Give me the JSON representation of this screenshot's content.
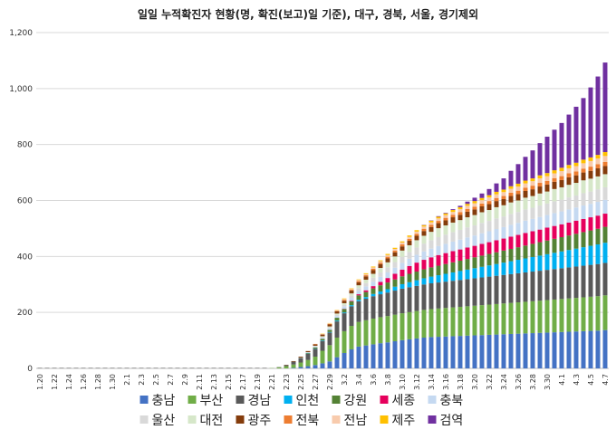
{
  "chart_data": {
    "type": "bar",
    "stacked": true,
    "title": "일일 누적확진자 현황(명, 확진(보고)일 기준), 대구, 경북, 서울, 경기제외",
    "xlabel": "",
    "ylabel": "",
    "ylim": [
      0,
      1200
    ],
    "yticks": [
      0,
      200,
      400,
      600,
      800,
      1000,
      1200
    ],
    "ytick_labels": [
      "0",
      "200",
      "400",
      "600",
      "800",
      "1,000",
      "1,200"
    ],
    "grid": true,
    "legend": "bottom",
    "categories": [
      "1.20",
      "1.21",
      "1.22",
      "1.23",
      "1.24",
      "1.25",
      "1.26",
      "1.27",
      "1.28",
      "1.29",
      "1.30",
      "1.31",
      "2.1",
      "2.2",
      "2.3",
      "2.4",
      "2.5",
      "2.6",
      "2.7",
      "2.8",
      "2.9",
      "2.10",
      "2.11",
      "2.12",
      "2.13",
      "2.14",
      "2.15",
      "2.16",
      "2.17",
      "2.18",
      "2.19",
      "2.20",
      "2.21",
      "2.22",
      "2.23",
      "2.24",
      "2.25",
      "2.26",
      "2.27",
      "2.28",
      "2.29",
      "3.1",
      "3.2",
      "3.3",
      "3.4",
      "3.5",
      "3.6",
      "3.7",
      "3.8",
      "3.9",
      "3.10",
      "3.11",
      "3.12",
      "3.13",
      "3.14",
      "3.15",
      "3.16",
      "3.17",
      "3.18",
      "3.19",
      "3.20",
      "3.21",
      "3.22",
      "3.23",
      "3.24",
      "3.25",
      "3.26",
      "3.27",
      "3.28",
      "3.29",
      "3.30",
      "3.31",
      "4.1",
      "4.2",
      "4.3",
      "4.4",
      "4.5",
      "4.6",
      "4.7"
    ],
    "tick_labels": [
      "1.20",
      "1.22",
      "1.24",
      "1.26",
      "1.28",
      "1.30",
      "2.1",
      "2.3",
      "2.5",
      "2.7",
      "2.9",
      "2.11",
      "2.13",
      "2.15",
      "2.17",
      "2.19",
      "2.21",
      "2.23",
      "2.25",
      "2.27",
      "2.29",
      "3.2",
      "3.4",
      "3.6",
      "3.8",
      "3.10",
      "3.12",
      "3.14",
      "3.16",
      "3.18",
      "3.20",
      "3.22",
      "3.24",
      "3.26",
      "3.28",
      "3.30",
      "4.1",
      "4.3",
      "4.5",
      "4.7"
    ],
    "series": [
      {
        "name": "충남",
        "color": "#4472C4",
        "values": [
          0,
          0,
          0,
          0,
          0,
          0,
          0,
          0,
          0,
          0,
          0,
          0,
          0,
          0,
          0,
          0,
          0,
          0,
          0,
          0,
          0,
          0,
          0,
          0,
          0,
          0,
          0,
          0,
          0,
          0,
          0,
          0,
          0,
          0,
          0,
          2,
          5,
          8,
          12,
          18,
          25,
          40,
          55,
          68,
          78,
          82,
          86,
          90,
          93,
          97,
          101,
          104,
          107,
          110,
          112,
          113,
          114,
          115,
          116,
          117,
          118,
          119,
          120,
          121,
          122,
          123,
          124,
          125,
          126,
          127,
          128,
          129,
          130,
          131,
          132,
          133,
          134,
          135,
          137
        ]
      },
      {
        "name": "부산",
        "color": "#70AD47",
        "values": [
          0,
          0,
          0,
          0,
          0,
          0,
          0,
          0,
          0,
          0,
          0,
          0,
          0,
          0,
          0,
          0,
          0,
          0,
          0,
          0,
          0,
          0,
          0,
          0,
          0,
          0,
          0,
          0,
          0,
          0,
          0,
          0,
          1,
          4,
          8,
          12,
          16,
          22,
          30,
          45,
          58,
          70,
          78,
          84,
          88,
          90,
          92,
          93,
          94,
          95,
          96,
          97,
          98,
          99,
          100,
          101,
          102,
          103,
          104,
          105,
          106,
          107,
          108,
          109,
          110,
          111,
          112,
          113,
          114,
          115,
          116,
          117,
          118,
          119,
          120,
          121,
          122,
          123,
          124
        ]
      },
      {
        "name": "경남",
        "color": "#595959",
        "values": [
          0,
          0,
          0,
          0,
          0,
          0,
          0,
          0,
          0,
          0,
          0,
          0,
          0,
          0,
          0,
          0,
          0,
          0,
          0,
          0,
          0,
          0,
          0,
          0,
          0,
          0,
          0,
          0,
          0,
          0,
          0,
          0,
          0,
          1,
          4,
          10,
          16,
          22,
          28,
          35,
          45,
          58,
          64,
          70,
          74,
          77,
          80,
          82,
          84,
          86,
          88,
          89,
          90,
          91,
          92,
          93,
          94,
          95,
          96,
          97,
          98,
          99,
          100,
          101,
          102,
          103,
          104,
          105,
          106,
          107,
          108,
          109,
          110,
          111,
          112,
          113,
          114,
          115,
          116
        ]
      },
      {
        "name": "인천",
        "color": "#00B0F0",
        "values": [
          0,
          0,
          0,
          0,
          0,
          0,
          0,
          0,
          0,
          0,
          0,
          0,
          0,
          0,
          0,
          0,
          0,
          0,
          0,
          0,
          0,
          0,
          0,
          0,
          0,
          0,
          0,
          0,
          0,
          0,
          0,
          0,
          0,
          0,
          0,
          0,
          0,
          1,
          1,
          2,
          2,
          3,
          3,
          4,
          5,
          6,
          8,
          10,
          12,
          14,
          16,
          18,
          20,
          22,
          24,
          26,
          28,
          30,
          32,
          34,
          36,
          38,
          40,
          42,
          44,
          46,
          48,
          50,
          52,
          54,
          56,
          58,
          60,
          62,
          64,
          66,
          68,
          70,
          72
        ]
      },
      {
        "name": "강원",
        "color": "#548235",
        "values": [
          0,
          0,
          0,
          0,
          0,
          0,
          0,
          0,
          0,
          0,
          0,
          0,
          0,
          0,
          0,
          0,
          0,
          0,
          0,
          0,
          0,
          0,
          0,
          0,
          0,
          0,
          0,
          0,
          0,
          0,
          0,
          0,
          0,
          0,
          0,
          0,
          1,
          2,
          4,
          6,
          8,
          10,
          12,
          14,
          16,
          18,
          20,
          22,
          24,
          26,
          28,
          30,
          31,
          32,
          33,
          34,
          35,
          36,
          37,
          38,
          39,
          40,
          41,
          42,
          43,
          44,
          45,
          46,
          47,
          48,
          49,
          50,
          51,
          52,
          53,
          54,
          55,
          56,
          57
        ]
      },
      {
        "name": "세종",
        "color": "#E6005C",
        "values": [
          0,
          0,
          0,
          0,
          0,
          0,
          0,
          0,
          0,
          0,
          0,
          0,
          0,
          0,
          0,
          0,
          0,
          0,
          0,
          0,
          0,
          0,
          0,
          0,
          0,
          0,
          0,
          0,
          0,
          0,
          0,
          0,
          0,
          0,
          0,
          0,
          0,
          0,
          0,
          0,
          0,
          0,
          1,
          2,
          4,
          6,
          8,
          12,
          16,
          20,
          24,
          28,
          32,
          34,
          36,
          38,
          39,
          40,
          40,
          41,
          41,
          42,
          42,
          43,
          43,
          44,
          44,
          45,
          45,
          45,
          46,
          46,
          46,
          46,
          47,
          47,
          47,
          47,
          47
        ]
      },
      {
        "name": "충북",
        "color": "#C5D9F1",
        "values": [
          0,
          0,
          0,
          0,
          0,
          0,
          0,
          0,
          0,
          0,
          0,
          0,
          0,
          0,
          0,
          0,
          0,
          0,
          0,
          0,
          0,
          0,
          0,
          0,
          0,
          0,
          0,
          0,
          0,
          0,
          0,
          0,
          0,
          0,
          0,
          0,
          1,
          2,
          3,
          4,
          5,
          6,
          8,
          10,
          12,
          14,
          16,
          18,
          20,
          22,
          24,
          26,
          28,
          30,
          31,
          32,
          33,
          34,
          35,
          36,
          37,
          38,
          39,
          40,
          41,
          42,
          43,
          44,
          44,
          45,
          45,
          46,
          46,
          47,
          47,
          48,
          48,
          49,
          49
        ]
      },
      {
        "name": "울산",
        "color": "#D9D9D9",
        "values": [
          0,
          0,
          0,
          0,
          0,
          0,
          0,
          0,
          0,
          0,
          0,
          0,
          0,
          0,
          0,
          0,
          0,
          0,
          0,
          0,
          0,
          0,
          0,
          0,
          0,
          0,
          0,
          0,
          0,
          0,
          0,
          0,
          0,
          0,
          0,
          0,
          0,
          1,
          2,
          3,
          4,
          5,
          6,
          8,
          10,
          12,
          14,
          16,
          18,
          20,
          22,
          24,
          26,
          28,
          30,
          32,
          33,
          34,
          35,
          36,
          36,
          37,
          37,
          38,
          38,
          39,
          39,
          40,
          40,
          41,
          41,
          42,
          42,
          43,
          43,
          44,
          44,
          45,
          45
        ]
      },
      {
        "name": "대전",
        "color": "#D6E7C9",
        "values": [
          0,
          0,
          0,
          0,
          0,
          0,
          0,
          0,
          0,
          0,
          0,
          0,
          0,
          0,
          0,
          0,
          0,
          0,
          0,
          0,
          0,
          0,
          0,
          0,
          0,
          0,
          0,
          0,
          0,
          0,
          0,
          0,
          0,
          0,
          0,
          0,
          0,
          0,
          1,
          2,
          3,
          4,
          6,
          8,
          10,
          12,
          14,
          16,
          18,
          20,
          22,
          24,
          26,
          28,
          30,
          32,
          33,
          34,
          35,
          36,
          37,
          38,
          39,
          40,
          40,
          41,
          41,
          42,
          42,
          43,
          43,
          44,
          44,
          45,
          45,
          46,
          46,
          46,
          47
        ]
      },
      {
        "name": "광주",
        "color": "#843C0C",
        "values": [
          0,
          0,
          0,
          0,
          0,
          0,
          0,
          0,
          0,
          0,
          0,
          0,
          0,
          0,
          0,
          0,
          0,
          0,
          0,
          0,
          0,
          0,
          0,
          0,
          0,
          0,
          0,
          0,
          0,
          0,
          0,
          0,
          0,
          0,
          1,
          2,
          3,
          4,
          5,
          6,
          7,
          8,
          9,
          10,
          11,
          12,
          13,
          14,
          14,
          15,
          15,
          16,
          16,
          17,
          17,
          18,
          18,
          19,
          19,
          20,
          20,
          21,
          21,
          22,
          22,
          23,
          23,
          24,
          24,
          25,
          25,
          26,
          26,
          27,
          27,
          28,
          28,
          29,
          29
        ]
      },
      {
        "name": "전북",
        "color": "#ED7D31",
        "values": [
          0,
          0,
          0,
          0,
          0,
          0,
          0,
          0,
          0,
          0,
          0,
          0,
          0,
          0,
          0,
          0,
          0,
          0,
          0,
          0,
          0,
          0,
          0,
          0,
          0,
          0,
          0,
          0,
          0,
          0,
          0,
          0,
          0,
          0,
          0,
          0,
          0,
          0,
          1,
          1,
          2,
          2,
          3,
          3,
          4,
          4,
          5,
          5,
          6,
          6,
          7,
          7,
          7,
          8,
          8,
          8,
          9,
          9,
          9,
          10,
          10,
          10,
          11,
          11,
          11,
          12,
          12,
          12,
          13,
          13,
          13,
          13,
          14,
          14,
          14,
          14,
          15,
          15,
          15
        ]
      },
      {
        "name": "전남",
        "color": "#F8CBAD",
        "values": [
          0,
          0,
          0,
          0,
          0,
          0,
          0,
          0,
          0,
          0,
          0,
          0,
          0,
          0,
          0,
          0,
          0,
          0,
          0,
          0,
          0,
          0,
          0,
          0,
          0,
          0,
          0,
          0,
          0,
          0,
          0,
          0,
          0,
          0,
          0,
          0,
          0,
          0,
          1,
          1,
          2,
          2,
          3,
          3,
          4,
          4,
          5,
          5,
          6,
          6,
          7,
          7,
          8,
          8,
          9,
          9,
          10,
          10,
          11,
          11,
          12,
          12,
          13,
          13,
          14,
          14,
          15,
          15,
          16,
          16,
          17,
          17,
          18,
          18,
          19,
          19,
          20,
          20,
          21
        ]
      },
      {
        "name": "제주",
        "color": "#FFC000",
        "values": [
          0,
          0,
          0,
          0,
          0,
          0,
          0,
          0,
          0,
          0,
          0,
          0,
          0,
          0,
          0,
          0,
          0,
          0,
          0,
          0,
          0,
          0,
          0,
          0,
          0,
          0,
          0,
          0,
          0,
          0,
          0,
          0,
          0,
          0,
          0,
          0,
          0,
          0,
          0,
          1,
          1,
          1,
          2,
          2,
          2,
          3,
          3,
          3,
          4,
          4,
          4,
          5,
          5,
          5,
          6,
          6,
          6,
          7,
          7,
          7,
          8,
          8,
          8,
          9,
          9,
          9,
          10,
          10,
          10,
          11,
          11,
          11,
          12,
          12,
          12,
          13,
          13,
          13,
          14
        ]
      },
      {
        "name": "검역",
        "color": "#7030A0",
        "values": [
          0,
          0,
          0,
          0,
          0,
          0,
          0,
          0,
          0,
          0,
          0,
          0,
          0,
          0,
          0,
          0,
          0,
          0,
          0,
          0,
          0,
          0,
          0,
          0,
          0,
          0,
          0,
          0,
          0,
          0,
          0,
          0,
          0,
          0,
          0,
          0,
          0,
          0,
          0,
          0,
          0,
          0,
          0,
          0,
          0,
          0,
          0,
          0,
          0,
          0,
          0,
          0,
          0,
          1,
          1,
          2,
          2,
          3,
          5,
          8,
          12,
          16,
          22,
          30,
          40,
          55,
          70,
          85,
          100,
          115,
          130,
          145,
          160,
          180,
          200,
          220,
          250,
          280,
          320
        ]
      }
    ]
  }
}
